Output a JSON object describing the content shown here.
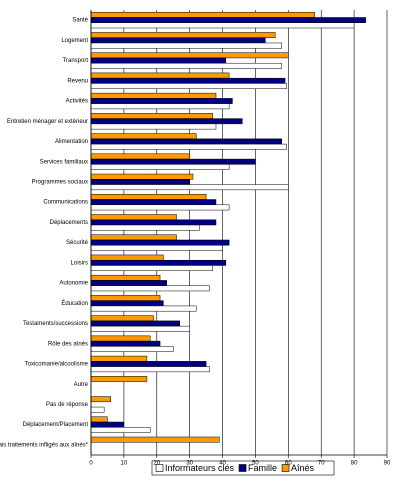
{
  "chart_data": {
    "type": "hbar",
    "categories": [
      "Santé",
      "Logement",
      "Transport",
      "Revenu",
      "Activités",
      "Entretien ménager et extérieur",
      "Alimentation",
      "Services familiaux",
      "Programmes sociaux",
      "Communications",
      "Déplacements",
      "Sécurité",
      "Loisirs",
      "Autonomie",
      "Éducation",
      "Testaments/successions",
      "Rôle des aînés",
      "Toxicomanie/alcoolisme",
      "Autre",
      "Pas de réponse",
      "Déplacement/Placement",
      "Mauvais traitements infligés aux aînés*"
    ],
    "series": [
      {
        "name": "Informateurs clés",
        "color": "#ffffff",
        "values": [
          80,
          58,
          58,
          59.5,
          42,
          38,
          59.5,
          42,
          60,
          42,
          33,
          40,
          37,
          36,
          32,
          30,
          25,
          36,
          0,
          4,
          18,
          0
        ]
      },
      {
        "name": "Famille",
        "color": "#000080",
        "values": [
          83.5,
          53,
          41,
          59,
          43,
          46,
          58,
          50,
          30,
          38,
          38,
          42,
          41,
          23,
          22,
          27,
          21,
          35,
          0,
          0,
          10,
          0
        ]
      },
      {
        "name": "Aînés",
        "color": "#ff9900",
        "values": [
          68,
          56,
          60,
          42,
          38,
          37,
          32,
          30,
          31,
          35,
          26,
          26,
          22,
          21,
          21,
          19,
          18,
          17,
          17,
          6,
          5,
          39
        ]
      }
    ],
    "xlim": [
      0,
      90
    ],
    "xticks": [
      0,
      10,
      20,
      30,
      40,
      50,
      60,
      70,
      80,
      90
    ],
    "grid": true
  }
}
